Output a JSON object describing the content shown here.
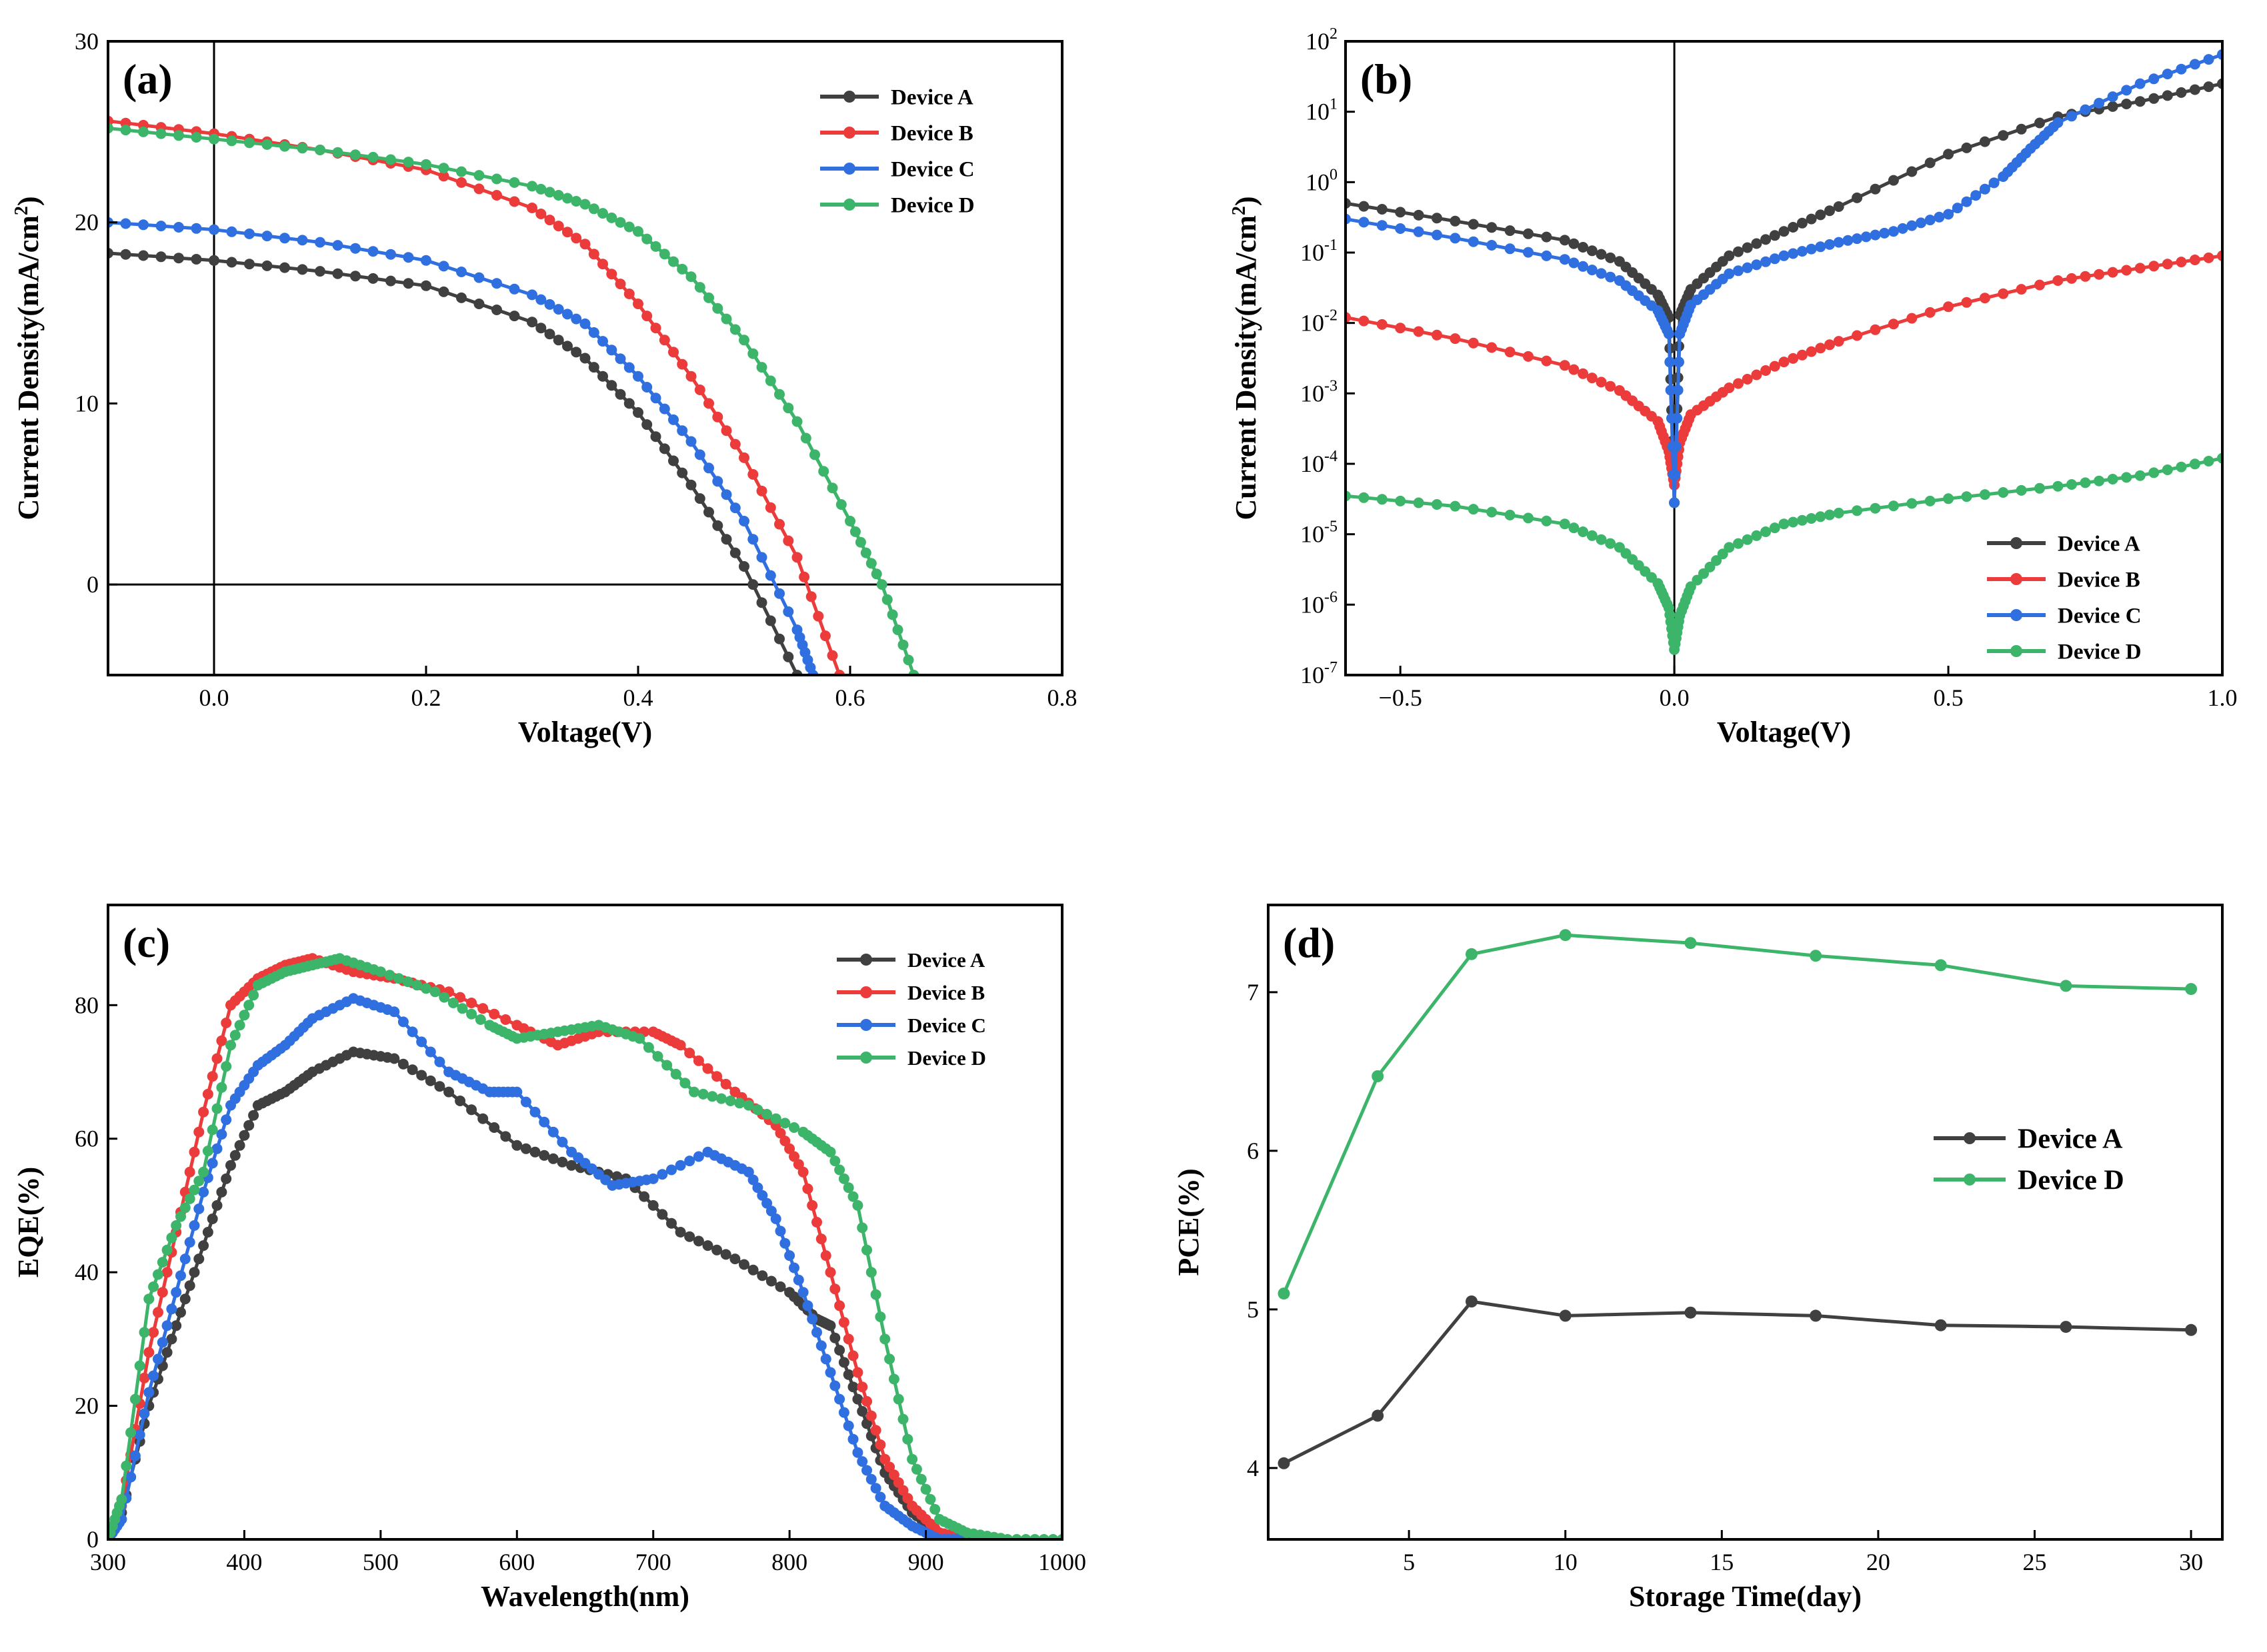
{
  "colors": {
    "A": "#404040",
    "B": "#ec3b3b",
    "C": "#2f6fe0",
    "D": "#3cb46a"
  },
  "chart_data": [
    {
      "panel": "(a)",
      "type": "line",
      "xlabel": "Voltage(V)",
      "ylabel": "Current Density(mA/cm",
      "ylabel_sup": "2",
      "ylabel_end": ")",
      "xlim": [
        -0.1,
        0.8
      ],
      "ylim": [
        -5,
        30
      ],
      "xticks": [
        0.0,
        0.2,
        0.4,
        0.6,
        0.8
      ],
      "xtick_labels": [
        "0.0",
        "0.2",
        "0.4",
        "0.6",
        "0.8"
      ],
      "yticks": [
        0,
        10,
        20,
        30
      ],
      "ytick_labels": [
        "0",
        "10",
        "20",
        "30"
      ],
      "legend_position": "top-right",
      "series": [
        {
          "name": "Device A",
          "key": "A",
          "x": [
            -0.1,
            0.0,
            0.1,
            0.2,
            0.3,
            0.35,
            0.4,
            0.45,
            0.5,
            0.55
          ],
          "y": [
            18.3,
            17.9,
            17.3,
            16.5,
            14.5,
            12.5,
            9.5,
            5.5,
            1.0,
            -5
          ]
        },
        {
          "name": "Device B",
          "key": "B",
          "x": [
            -0.1,
            0.0,
            0.1,
            0.2,
            0.3,
            0.35,
            0.4,
            0.45,
            0.5,
            0.55,
            0.59
          ],
          "y": [
            25.6,
            24.9,
            24.0,
            22.9,
            20.8,
            18.8,
            15.5,
            11.5,
            7.0,
            1.5,
            -5
          ]
        },
        {
          "name": "Device C",
          "key": "C",
          "x": [
            -0.1,
            0.0,
            0.1,
            0.2,
            0.3,
            0.35,
            0.4,
            0.45,
            0.5,
            0.55,
            0.565
          ],
          "y": [
            20.0,
            19.6,
            18.9,
            17.9,
            16.0,
            14.4,
            11.5,
            7.9,
            3.5,
            -2.5,
            -5
          ]
        },
        {
          "name": "Device D",
          "key": "D",
          "x": [
            -0.1,
            0.0,
            0.1,
            0.2,
            0.3,
            0.35,
            0.4,
            0.45,
            0.5,
            0.55,
            0.6,
            0.63,
            0.66
          ],
          "y": [
            25.2,
            24.6,
            24.0,
            23.2,
            22.0,
            21.0,
            19.5,
            17.0,
            13.5,
            9.0,
            3.5,
            0.0,
            -5
          ]
        }
      ]
    },
    {
      "panel": "(b)",
      "type": "line",
      "yscale": "log",
      "xlabel": "Voltage(V)",
      "ylabel": "Current Density(mA/cm",
      "ylabel_sup": "2",
      "ylabel_end": ")",
      "xlim": [
        -0.6,
        1.0
      ],
      "ylim_log10": [
        -7,
        2
      ],
      "xticks": [
        -0.5,
        0.0,
        0.5,
        1.0
      ],
      "xtick_labels": [
        "−0.5",
        "0.0",
        "0.5",
        "1.0"
      ],
      "ytick_exponents": [
        -7,
        -6,
        -5,
        -4,
        -3,
        -2,
        -1,
        0,
        1,
        2
      ],
      "ytick_base": "10",
      "ytick_exp_labels": [
        "-7",
        "-6",
        "-5",
        "-4",
        "-3",
        "-2",
        "-1",
        "0",
        "1",
        "2"
      ],
      "legend_position": "bottom-right",
      "series": [
        {
          "name": "Device A",
          "key": "A",
          "x": [
            -0.6,
            -0.4,
            -0.2,
            -0.1,
            -0.03,
            -0.01,
            0.0,
            0.01,
            0.03,
            0.1,
            0.2,
            0.3,
            0.5,
            0.7,
            0.85,
            1.0
          ],
          "y": [
            0.5,
            0.28,
            0.15,
            0.075,
            0.025,
            0.012,
            2.8e-05,
            0.013,
            0.03,
            0.09,
            0.2,
            0.45,
            2.5,
            8.5,
            14,
            25
          ]
        },
        {
          "name": "Device B",
          "key": "B",
          "x": [
            -0.6,
            -0.4,
            -0.2,
            -0.1,
            -0.03,
            -0.01,
            0.0,
            0.01,
            0.03,
            0.1,
            0.2,
            0.3,
            0.5,
            0.7,
            0.85,
            1.0
          ],
          "y": [
            0.012,
            0.006,
            0.0025,
            0.0011,
            0.0004,
            0.00015,
            5e-05,
            0.0002,
            0.0005,
            0.0012,
            0.0028,
            0.0055,
            0.017,
            0.04,
            0.06,
            0.09
          ]
        },
        {
          "name": "Device C",
          "key": "C",
          "x": [
            -0.6,
            -0.4,
            -0.2,
            -0.1,
            -0.03,
            -0.01,
            0.0,
            0.01,
            0.03,
            0.1,
            0.2,
            0.3,
            0.4,
            0.5,
            0.6,
            0.65,
            0.7,
            0.85,
            1.0
          ],
          "y": [
            0.3,
            0.16,
            0.08,
            0.04,
            0.015,
            0.007,
            2.8e-05,
            0.007,
            0.018,
            0.05,
            0.09,
            0.14,
            0.2,
            0.35,
            1.2,
            3.0,
            7.0,
            25,
            65
          ]
        },
        {
          "name": "Device D",
          "key": "D",
          "x": [
            -0.6,
            -0.4,
            -0.2,
            -0.1,
            -0.03,
            -0.01,
            0.0,
            0.01,
            0.03,
            0.1,
            0.2,
            0.3,
            0.5,
            0.7,
            0.85,
            1.0
          ],
          "y": [
            3.5e-05,
            2.5e-05,
            1.4e-05,
            6.5e-06,
            2e-06,
            9e-07,
            2.3e-07,
            7e-07,
            1.8e-06,
            6.5e-06,
            1.4e-05,
            2e-05,
            3.2e-05,
            4.8e-05,
            6.8e-05,
            0.00012
          ]
        }
      ]
    },
    {
      "panel": "(c)",
      "type": "line",
      "xlabel": "Wavelength(nm)",
      "ylabel": "EQE(%)",
      "xlim": [
        300,
        1000
      ],
      "ylim": [
        0,
        95
      ],
      "xticks": [
        300,
        400,
        500,
        600,
        700,
        800,
        900,
        1000
      ],
      "xtick_labels": [
        "300",
        "400",
        "500",
        "600",
        "700",
        "800",
        "900",
        "1000"
      ],
      "yticks": [
        0,
        20,
        40,
        60,
        80
      ],
      "ytick_labels": [
        "0",
        "20",
        "40",
        "60",
        "80"
      ],
      "legend_position": "top-right",
      "series": [
        {
          "name": "Device A",
          "key": "A",
          "x": [
            300,
            310,
            330,
            350,
            370,
            390,
            410,
            430,
            450,
            480,
            510,
            550,
            600,
            640,
            680,
            720,
            760,
            800,
            820,
            830,
            850,
            870,
            890,
            910,
            930
          ],
          "y": [
            0,
            4,
            20,
            32,
            44,
            56,
            65,
            67,
            70,
            73,
            72,
            67,
            59,
            56,
            54,
            46,
            42,
            37,
            33,
            32,
            21,
            10,
            4,
            1,
            0
          ]
        },
        {
          "name": "Device B",
          "key": "B",
          "x": [
            300,
            310,
            330,
            350,
            370,
            390,
            410,
            430,
            450,
            480,
            510,
            550,
            600,
            630,
            660,
            700,
            720,
            760,
            790,
            810,
            830,
            850,
            870,
            890,
            910,
            930
          ],
          "y": [
            0,
            5,
            28,
            46,
            64,
            80,
            84,
            86,
            87,
            85,
            84,
            82,
            77,
            74,
            76,
            76,
            74,
            67,
            62,
            55,
            40,
            25,
            12,
            5,
            1,
            0
          ]
        },
        {
          "name": "Device C",
          "key": "C",
          "x": [
            300,
            310,
            330,
            350,
            370,
            390,
            410,
            430,
            450,
            480,
            510,
            550,
            580,
            600,
            640,
            670,
            700,
            740,
            770,
            790,
            810,
            830,
            850,
            870,
            890,
            910,
            930
          ],
          "y": [
            0,
            3,
            22,
            37,
            52,
            65,
            71,
            74,
            78,
            81,
            79,
            70,
            67,
            67,
            58,
            53,
            54,
            58,
            55,
            48,
            37,
            25,
            13,
            5,
            2,
            0,
            0
          ]
        },
        {
          "name": "Device D",
          "key": "D",
          "x": [
            300,
            310,
            330,
            350,
            370,
            390,
            410,
            430,
            450,
            470,
            500,
            540,
            580,
            600,
            630,
            660,
            690,
            730,
            770,
            810,
            830,
            850,
            870,
            890,
            910,
            930,
            960,
            1000
          ],
          "y": [
            0,
            6,
            36,
            47,
            55,
            74,
            83,
            85,
            86,
            87,
            85,
            82,
            77,
            75,
            76,
            77,
            75,
            67,
            65,
            61,
            58,
            50,
            30,
            12,
            3,
            1,
            0,
            0
          ]
        }
      ]
    },
    {
      "panel": "(d)",
      "type": "line",
      "xlabel": "Storage Time(day)",
      "ylabel": "PCE(%)",
      "xlim": [
        0.5,
        31
      ],
      "ylim": [
        3.55,
        7.55
      ],
      "xticks": [
        5,
        10,
        15,
        20,
        25,
        30
      ],
      "xtick_labels": [
        "5",
        "10",
        "15",
        "20",
        "25",
        "30"
      ],
      "yticks": [
        4,
        5,
        6,
        7
      ],
      "ytick_labels": [
        "4",
        "5",
        "6",
        "7"
      ],
      "legend_position": "right",
      "series": [
        {
          "name": "Device A",
          "key": "A",
          "x": [
            1,
            4,
            7,
            10,
            14,
            18,
            22,
            26,
            30
          ],
          "y": [
            4.03,
            4.33,
            5.05,
            4.96,
            4.98,
            4.96,
            4.9,
            4.89,
            4.87
          ]
        },
        {
          "name": "Device D",
          "key": "D",
          "x": [
            1,
            4,
            7,
            10,
            14,
            18,
            22,
            26,
            30
          ],
          "y": [
            5.1,
            6.47,
            7.24,
            7.36,
            7.31,
            7.23,
            7.17,
            7.04,
            7.02
          ]
        }
      ]
    }
  ]
}
